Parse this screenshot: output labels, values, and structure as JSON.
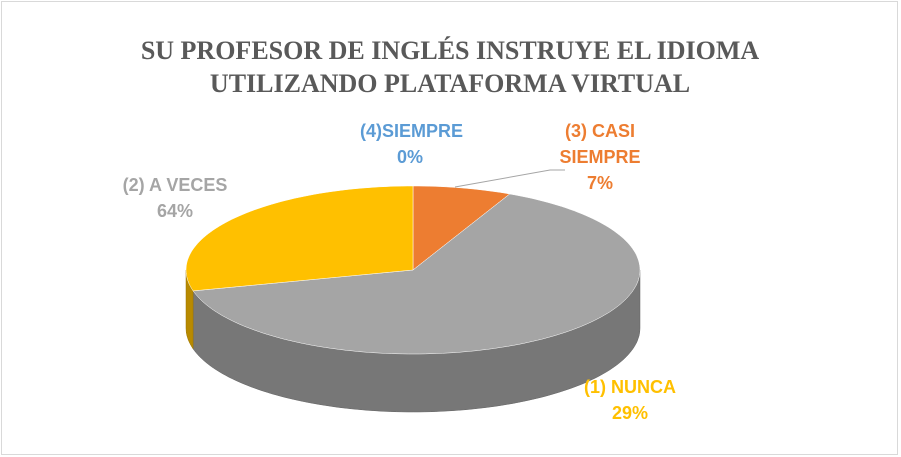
{
  "chart_data": {
    "type": "pie",
    "title": "SU PROFESOR DE INGLÉS INSTRUYE EL IDIOMA UTILIZANDO PLATAFORMA VIRTUAL",
    "categories": [
      "(4)SIEMPRE",
      "(3) CASI SIEMPRE",
      "(2) A VECES",
      "(1) NUNCA"
    ],
    "values": [
      0,
      7,
      64,
      29
    ],
    "value_labels": [
      "0%",
      "7%",
      "64%",
      "29%"
    ],
    "colors": [
      "#5b9bd5",
      "#ed7d31",
      "#a5a5a5",
      "#ffc000"
    ],
    "three_d": true
  }
}
